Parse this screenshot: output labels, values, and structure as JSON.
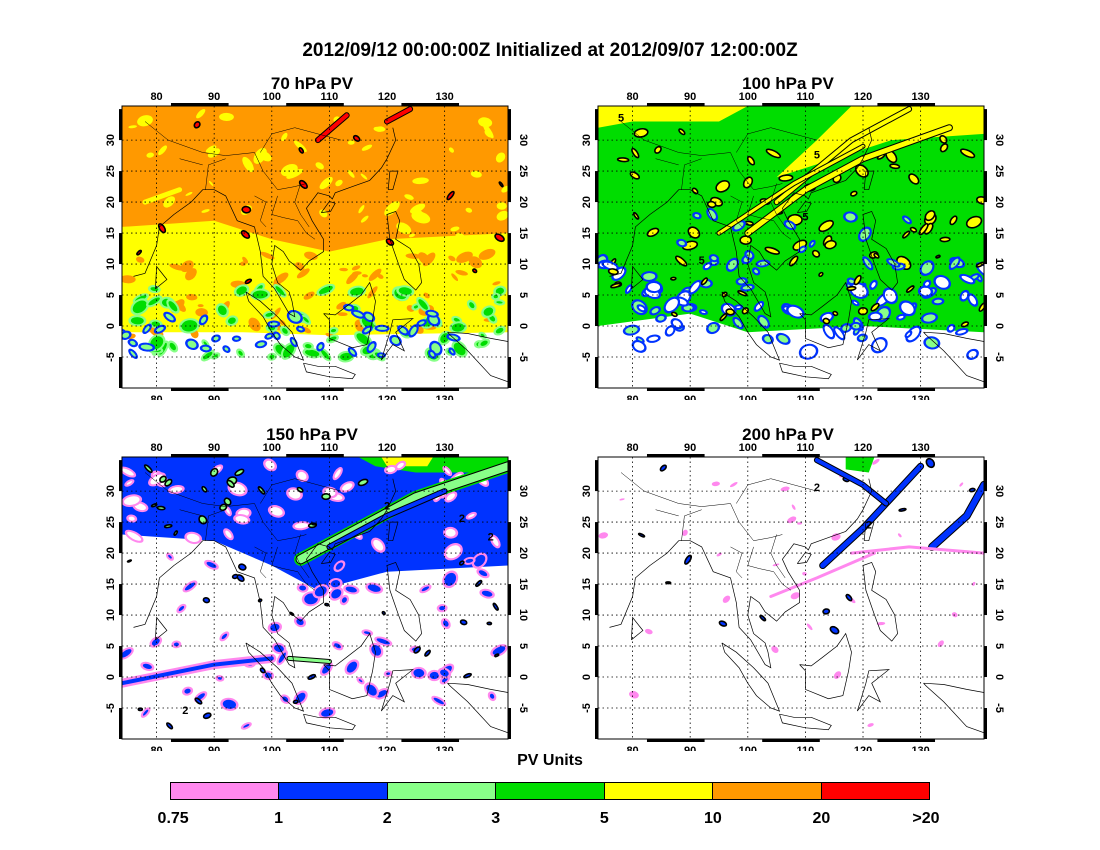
{
  "title": "2012/09/12 00:00:00Z Initialized at 2012/09/07 12:00:00Z",
  "colors": {
    "pink": "#FF88EE",
    "blue": "#0033FF",
    "lightgreen": "#88FF88",
    "green": "#00DD00",
    "yellow": "#FFFF00",
    "orange": "#FF9900",
    "red": "#FF0000"
  },
  "panels": [
    {
      "id": "p70",
      "title": "70 hPa PV",
      "background": "orange"
    },
    {
      "id": "p100",
      "title": "100 hPa PV",
      "background": "green"
    },
    {
      "id": "p150",
      "title": "150 hPa PV",
      "background": "blue"
    },
    {
      "id": "p200",
      "title": "200 hPa PV",
      "background": "white"
    }
  ],
  "axes": {
    "lon_ticks": [
      "80",
      "90",
      "100",
      "110",
      "120",
      "130"
    ],
    "lat_ticks": [
      "30",
      "25",
      "20",
      "15",
      "10",
      "5",
      "0",
      "-5"
    ]
  },
  "legend": {
    "title": "PV Units",
    "labels": [
      "0.75",
      "1",
      "2",
      "3",
      "5",
      "10",
      "20",
      ">20"
    ],
    "colors": [
      "pink",
      "blue",
      "lightgreen",
      "green",
      "yellow",
      "orange",
      "red"
    ]
  },
  "contour_labels": {
    "p100": [
      "5",
      "5",
      "5",
      "5"
    ],
    "p150": [
      "2",
      "2",
      "2",
      "2"
    ],
    "p200": [
      "2",
      "2"
    ]
  }
}
